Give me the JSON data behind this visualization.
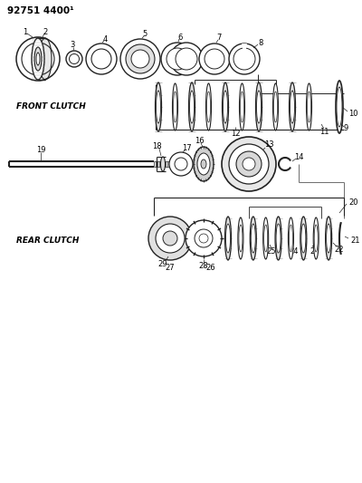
{
  "title": "92751 4400¹",
  "bg_color": "#ffffff",
  "line_color": "#222222",
  "text_color": "#000000",
  "front_clutch_label": "FRONT CLUTCH",
  "rear_clutch_label": "REAR CLUTCH",
  "fig_width": 4.0,
  "fig_height": 5.33,
  "dpi": 100
}
